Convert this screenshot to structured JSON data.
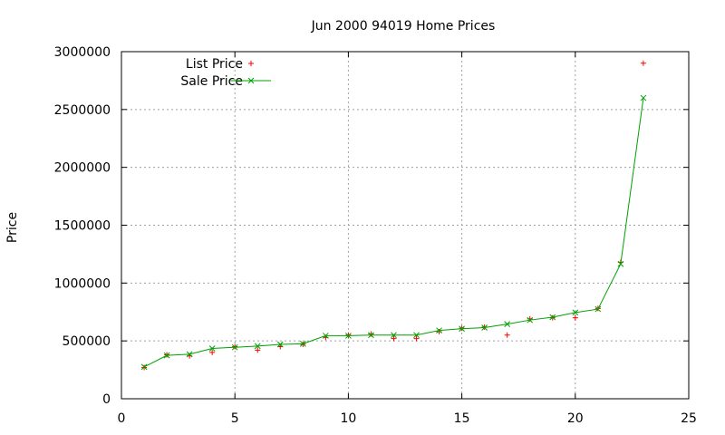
{
  "chart_data": {
    "type": "scatter",
    "title": "Jun 2000 94019 Home Prices",
    "xlabel": "",
    "ylabel": "Price",
    "xlim": [
      0,
      25
    ],
    "ylim": [
      0,
      3000000
    ],
    "xticks": [
      0,
      5,
      10,
      15,
      20,
      25
    ],
    "yticks": [
      0,
      500000,
      1000000,
      1500000,
      2000000,
      2500000,
      3000000
    ],
    "grid": true,
    "legend_position": "top-left",
    "series": [
      {
        "name": "List Price",
        "style": "points",
        "marker": "plus",
        "color": "#ff0000",
        "x": [
          1,
          2,
          3,
          4,
          5,
          6,
          7,
          8,
          9,
          10,
          11,
          12,
          13,
          14,
          15,
          16,
          17,
          18,
          19,
          20,
          21,
          22,
          23
        ],
        "y": [
          270000,
          380000,
          370000,
          400000,
          450000,
          420000,
          450000,
          470000,
          530000,
          550000,
          560000,
          520000,
          520000,
          580000,
          610000,
          620000,
          550000,
          690000,
          700000,
          700000,
          780000,
          1180000,
          2900000
        ]
      },
      {
        "name": "Sale Price",
        "style": "linespoints",
        "marker": "cross",
        "color": "#00a000",
        "x": [
          1,
          2,
          3,
          4,
          5,
          6,
          7,
          8,
          9,
          10,
          11,
          12,
          13,
          14,
          15,
          16,
          17,
          18,
          19,
          20,
          21,
          22,
          23
        ],
        "y": [
          275000,
          375000,
          385000,
          435000,
          445000,
          455000,
          470000,
          475000,
          545000,
          545000,
          550000,
          550000,
          550000,
          590000,
          605000,
          615000,
          645000,
          680000,
          705000,
          745000,
          775000,
          1165000,
          2600000
        ]
      }
    ]
  }
}
